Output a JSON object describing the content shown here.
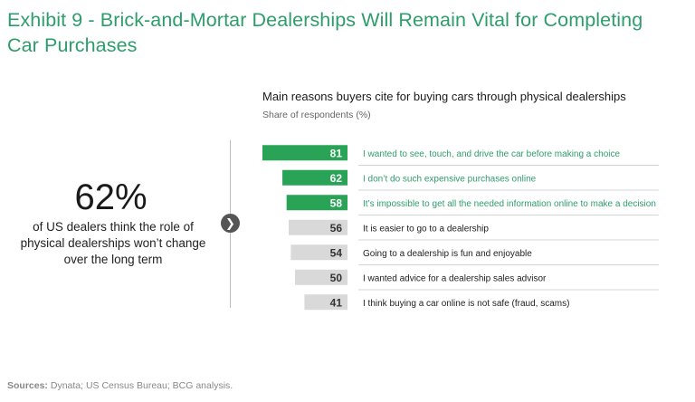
{
  "title": "Exhibit 9 - Brick-and-Mortar Dealerships Will Remain Vital for Completing Car Purchases",
  "stat": {
    "value": "62%",
    "text": "of US dealers think the role of physical dealerships won’t change over the long term"
  },
  "arrow_icon": "chevron-right-icon",
  "colors": {
    "accent": "#2e9d6c",
    "bar_highlight": "#29a356",
    "bar_muted": "#d9d9d9",
    "label_highlight": "#2e9d6c",
    "label_muted": "#222222"
  },
  "source": {
    "label": "Sources:",
    "text": " Dynata; US Census Bureau; BCG analysis."
  },
  "chart_data": {
    "type": "bar",
    "orientation": "horizontal",
    "title": "Main reasons buyers cite for buying cars through physical dealerships",
    "subtitle": "Share of respondents (%)",
    "xlim": [
      0,
      100
    ],
    "categories": [
      "I wanted to see, touch, and drive the car before making a choice",
      "I don’t do such expensive purchases online",
      "It’s impossible to get all the needed information online to make a decision",
      "It is easier to go to a dealership",
      "Going to a dealership is fun and enjoyable",
      "I wanted advice for a dealership sales advisor",
      "I think buying a car online is not safe (fraud, scams)"
    ],
    "values": [
      81,
      62,
      58,
      56,
      54,
      50,
      41
    ],
    "highlighted": [
      true,
      true,
      true,
      false,
      false,
      false,
      false
    ],
    "grid": false
  }
}
